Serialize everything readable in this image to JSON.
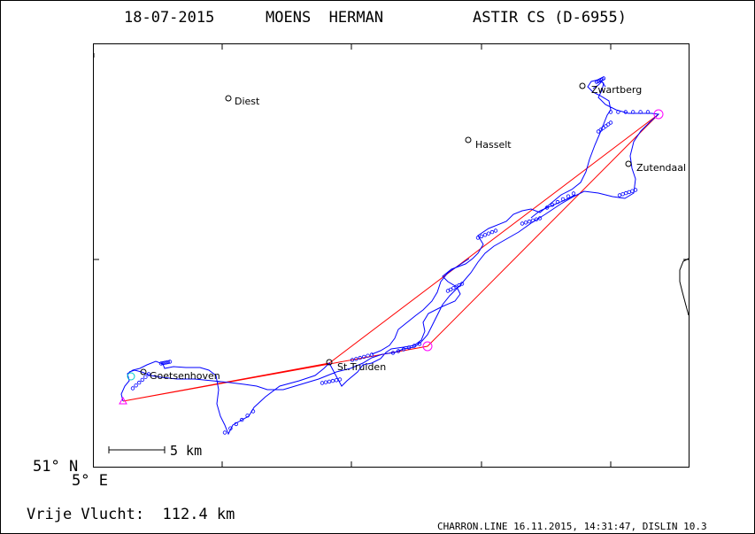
{
  "header": {
    "date": "18-07-2015",
    "pilot": "MOENS  HERMAN",
    "glider": "ASTIR CS (D-6955)"
  },
  "map": {
    "lat_label": "51° N",
    "lon_label": "5° E",
    "scale_label": "5 km",
    "colors": {
      "track": "#0000ff",
      "task": "#ff0000",
      "turnpoint": "#ff00ff",
      "frame": "#000000",
      "start": "#00cccc"
    },
    "towns": [
      {
        "name": "Diest"
      },
      {
        "name": "Hasselt"
      },
      {
        "name": "Zwartberg"
      },
      {
        "name": "Zutendaal"
      },
      {
        "name": "St.Truiden"
      },
      {
        "name": "Goetsenhoven"
      }
    ]
  },
  "footer": {
    "distance": "Vrije Vlucht:  112.4 km",
    "credit": "CHARRON.LINE 16.11.2015, 14:31:47, DISLIN 10.3"
  }
}
